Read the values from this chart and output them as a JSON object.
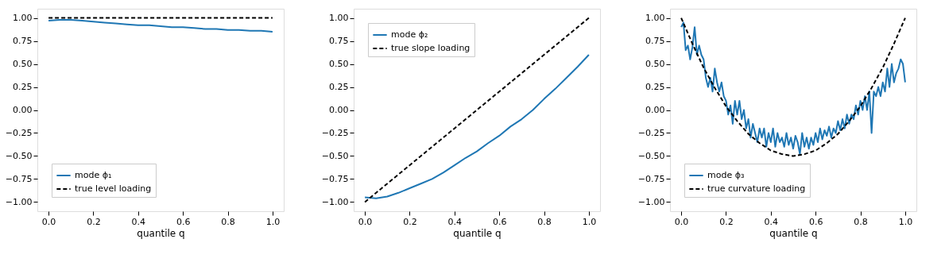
{
  "chart_data": [
    {
      "type": "line",
      "xlabel": "quantile q",
      "xlim": [
        -0.05,
        1.05
      ],
      "ylim": [
        -1.1,
        1.1
      ],
      "legend": "bottom left",
      "grid": false,
      "xticks": [
        {
          "value": 0,
          "label": "0.0"
        },
        {
          "value": 0.2,
          "label": "0.2"
        },
        {
          "value": 0.4,
          "label": "0.4"
        },
        {
          "value": 0.6,
          "label": "0.6"
        },
        {
          "value": 0.8,
          "label": "0.8"
        },
        {
          "value": 1,
          "label": "1.0"
        }
      ],
      "yticks": [
        {
          "value": -1,
          "label": "−1.00"
        },
        {
          "value": -0.75,
          "label": "−0.75"
        },
        {
          "value": -0.5,
          "label": "−0.50"
        },
        {
          "value": -0.25,
          "label": "−0.25"
        },
        {
          "value": 0,
          "label": "0.00"
        },
        {
          "value": 0.25,
          "label": "0.25"
        },
        {
          "value": 0.5,
          "label": "0.50"
        },
        {
          "value": 0.75,
          "label": "0.75"
        },
        {
          "value": 1,
          "label": "1.00"
        }
      ],
      "series": [
        {
          "name": "mode ϕ₁",
          "color": "#1f77b4",
          "line_style": "solid",
          "x": [
            0,
            0.05,
            0.1,
            0.15,
            0.2,
            0.25,
            0.3,
            0.35,
            0.4,
            0.45,
            0.5,
            0.55,
            0.6,
            0.65,
            0.7,
            0.75,
            0.8,
            0.85,
            0.9,
            0.95,
            1.0
          ],
          "values": [
            0.97,
            0.98,
            0.98,
            0.97,
            0.96,
            0.95,
            0.94,
            0.93,
            0.92,
            0.92,
            0.91,
            0.9,
            0.9,
            0.89,
            0.88,
            0.88,
            0.87,
            0.87,
            0.86,
            0.86,
            0.85
          ]
        },
        {
          "name": "true level loading",
          "color": "#000000",
          "line_style": "dashed",
          "x": [
            0,
            1
          ],
          "values": [
            1,
            1
          ]
        }
      ]
    },
    {
      "type": "line",
      "xlabel": "quantile q",
      "xlim": [
        -0.05,
        1.05
      ],
      "ylim": [
        -1.1,
        1.1
      ],
      "legend": "top left",
      "grid": false,
      "xticks": [
        {
          "value": 0,
          "label": "0.0"
        },
        {
          "value": 0.2,
          "label": "0.2"
        },
        {
          "value": 0.4,
          "label": "0.4"
        },
        {
          "value": 0.6,
          "label": "0.6"
        },
        {
          "value": 0.8,
          "label": "0.8"
        },
        {
          "value": 1,
          "label": "1.0"
        }
      ],
      "yticks": [
        {
          "value": -1,
          "label": "−1.00"
        },
        {
          "value": -0.75,
          "label": "−0.75"
        },
        {
          "value": -0.5,
          "label": "−0.50"
        },
        {
          "value": -0.25,
          "label": "−0.25"
        },
        {
          "value": 0,
          "label": "0.00"
        },
        {
          "value": 0.25,
          "label": "0.25"
        },
        {
          "value": 0.5,
          "label": "0.50"
        },
        {
          "value": 0.75,
          "label": "0.75"
        },
        {
          "value": 1,
          "label": "1.00"
        }
      ],
      "series": [
        {
          "name": "mode ϕ₂",
          "color": "#1f77b4",
          "line_style": "solid",
          "x": [
            0,
            0.05,
            0.1,
            0.15,
            0.2,
            0.25,
            0.3,
            0.35,
            0.4,
            0.45,
            0.5,
            0.55,
            0.6,
            0.65,
            0.7,
            0.75,
            0.8,
            0.85,
            0.9,
            0.95,
            1.0
          ],
          "values": [
            -0.95,
            -0.96,
            -0.94,
            -0.9,
            -0.85,
            -0.8,
            -0.75,
            -0.68,
            -0.6,
            -0.52,
            -0.45,
            -0.36,
            -0.28,
            -0.18,
            -0.1,
            0.0,
            0.12,
            0.23,
            0.35,
            0.47,
            0.6
          ]
        },
        {
          "name": "true slope loading",
          "color": "#000000",
          "line_style": "dashed",
          "x": [
            0,
            1
          ],
          "values": [
            -1,
            1
          ]
        }
      ]
    },
    {
      "type": "line",
      "xlabel": "quantile q",
      "xlim": [
        -0.05,
        1.05
      ],
      "ylim": [
        -1.1,
        1.1
      ],
      "legend": "bottom left",
      "grid": false,
      "xticks": [
        {
          "value": 0,
          "label": "0.0"
        },
        {
          "value": 0.2,
          "label": "0.2"
        },
        {
          "value": 0.4,
          "label": "0.4"
        },
        {
          "value": 0.6,
          "label": "0.6"
        },
        {
          "value": 0.8,
          "label": "0.8"
        },
        {
          "value": 1,
          "label": "1.0"
        }
      ],
      "yticks": [
        {
          "value": -1,
          "label": "−1.00"
        },
        {
          "value": -0.75,
          "label": "−0.75"
        },
        {
          "value": -0.5,
          "label": "−0.50"
        },
        {
          "value": -0.25,
          "label": "−0.25"
        },
        {
          "value": 0,
          "label": "0.00"
        },
        {
          "value": 0.25,
          "label": "0.25"
        },
        {
          "value": 0.5,
          "label": "0.50"
        },
        {
          "value": 0.75,
          "label": "0.75"
        },
        {
          "value": 1,
          "label": "1.00"
        }
      ],
      "series": [
        {
          "name": "mode ϕ₃",
          "color": "#1f77b4",
          "line_style": "solid",
          "x": [
            0,
            0.01,
            0.02,
            0.03,
            0.04,
            0.05,
            0.06,
            0.07,
            0.08,
            0.09,
            0.1,
            0.11,
            0.12,
            0.13,
            0.14,
            0.15,
            0.16,
            0.17,
            0.18,
            0.19,
            0.2,
            0.21,
            0.22,
            0.23,
            0.24,
            0.25,
            0.26,
            0.27,
            0.28,
            0.29,
            0.3,
            0.31,
            0.32,
            0.33,
            0.34,
            0.35,
            0.36,
            0.37,
            0.38,
            0.39,
            0.4,
            0.41,
            0.42,
            0.43,
            0.44,
            0.45,
            0.46,
            0.47,
            0.48,
            0.49,
            0.5,
            0.51,
            0.52,
            0.53,
            0.54,
            0.55,
            0.56,
            0.57,
            0.58,
            0.59,
            0.6,
            0.61,
            0.62,
            0.63,
            0.64,
            0.65,
            0.66,
            0.67,
            0.68,
            0.69,
            0.7,
            0.71,
            0.72,
            0.73,
            0.74,
            0.75,
            0.76,
            0.77,
            0.78,
            0.79,
            0.8,
            0.81,
            0.82,
            0.83,
            0.84,
            0.85,
            0.86,
            0.87,
            0.88,
            0.89,
            0.9,
            0.91,
            0.92,
            0.93,
            0.94,
            0.95,
            0.96,
            0.97,
            0.98,
            0.99,
            1.0
          ],
          "values": [
            0.9,
            0.95,
            0.65,
            0.7,
            0.55,
            0.68,
            0.9,
            0.6,
            0.7,
            0.6,
            0.55,
            0.35,
            0.25,
            0.35,
            0.2,
            0.45,
            0.3,
            0.2,
            0.3,
            0.15,
            0.1,
            -0.05,
            0.05,
            -0.15,
            0.1,
            -0.05,
            0.1,
            -0.1,
            0.0,
            -0.2,
            -0.1,
            -0.3,
            -0.15,
            -0.25,
            -0.35,
            -0.2,
            -0.3,
            -0.2,
            -0.4,
            -0.25,
            -0.35,
            -0.2,
            -0.4,
            -0.25,
            -0.35,
            -0.3,
            -0.4,
            -0.25,
            -0.38,
            -0.3,
            -0.42,
            -0.28,
            -0.35,
            -0.48,
            -0.25,
            -0.4,
            -0.3,
            -0.42,
            -0.3,
            -0.38,
            -0.25,
            -0.35,
            -0.2,
            -0.32,
            -0.22,
            -0.28,
            -0.18,
            -0.3,
            -0.2,
            -0.25,
            -0.12,
            -0.22,
            -0.1,
            -0.2,
            -0.05,
            -0.15,
            -0.05,
            -0.1,
            0.05,
            -0.05,
            0.1,
            0.0,
            0.15,
            0.0,
            0.2,
            -0.25,
            0.2,
            0.15,
            0.25,
            0.15,
            0.3,
            0.2,
            0.45,
            0.25,
            0.5,
            0.3,
            0.4,
            0.45,
            0.55,
            0.5,
            0.3
          ]
        },
        {
          "name": "true curvature loading",
          "color": "#000000",
          "line_style": "dashed",
          "x": [
            0,
            0.05,
            0.1,
            0.15,
            0.2,
            0.25,
            0.3,
            0.35,
            0.4,
            0.45,
            0.5,
            0.55,
            0.6,
            0.65,
            0.7,
            0.75,
            0.8,
            0.85,
            0.9,
            0.95,
            1.0
          ],
          "values": [
            1.0,
            0.72,
            0.46,
            0.24,
            0.04,
            -0.12,
            -0.26,
            -0.36,
            -0.44,
            -0.48,
            -0.5,
            -0.48,
            -0.44,
            -0.36,
            -0.26,
            -0.12,
            0.04,
            0.24,
            0.46,
            0.72,
            1.0
          ]
        }
      ]
    }
  ]
}
